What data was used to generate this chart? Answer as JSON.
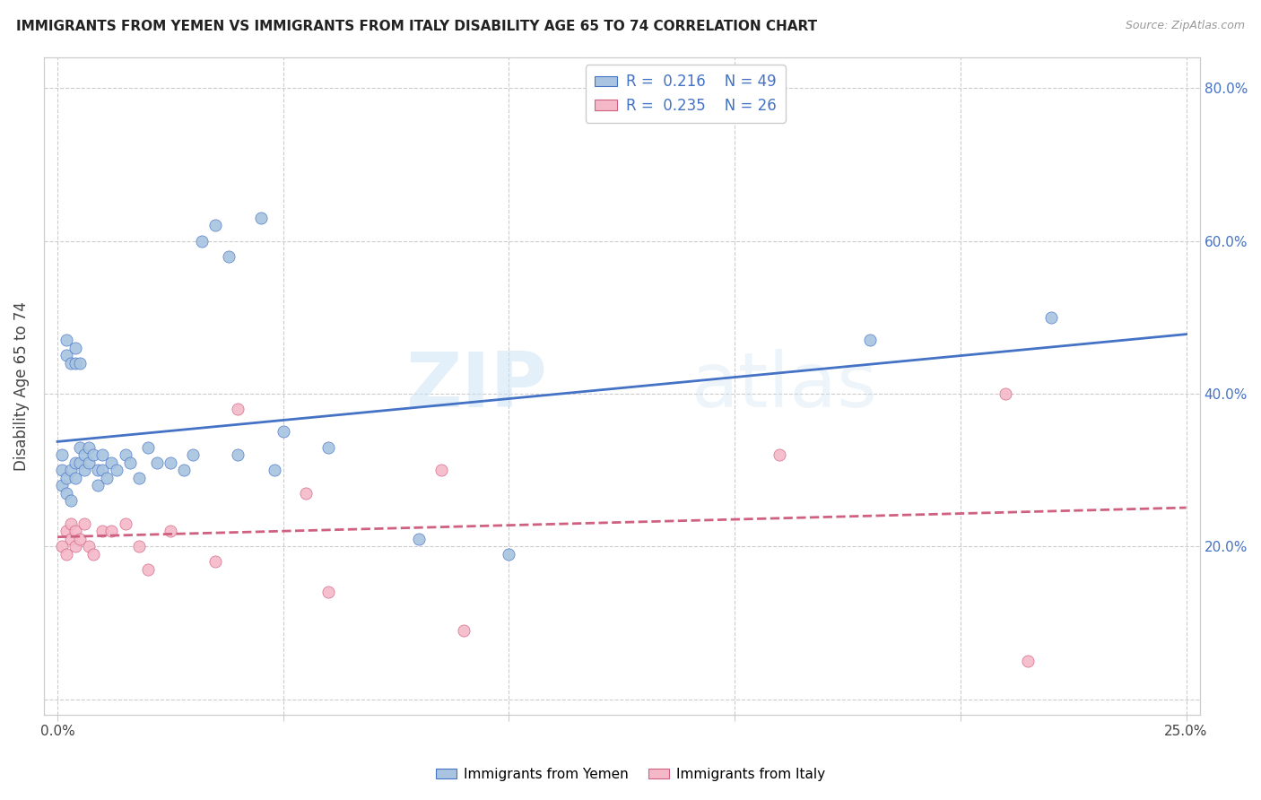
{
  "title": "IMMIGRANTS FROM YEMEN VS IMMIGRANTS FROM ITALY DISABILITY AGE 65 TO 74 CORRELATION CHART",
  "source": "Source: ZipAtlas.com",
  "ylabel": "Disability Age 65 to 74",
  "legend_r1": "0.216",
  "legend_n1": "49",
  "legend_r2": "0.235",
  "legend_n2": "26",
  "legend_label1": "Immigrants from Yemen",
  "legend_label2": "Immigrants from Italy",
  "color_yemen": "#a8c4e0",
  "color_italy": "#f4b8c8",
  "color_trend_yemen": "#4472c4",
  "color_trend_italy": "#d06080",
  "watermark_zip": "ZIP",
  "watermark_atlas": "atlas",
  "yemen_x": [
    0.001,
    0.001,
    0.001,
    0.002,
    0.002,
    0.002,
    0.002,
    0.003,
    0.003,
    0.003,
    0.004,
    0.004,
    0.004,
    0.004,
    0.005,
    0.005,
    0.005,
    0.006,
    0.006,
    0.007,
    0.007,
    0.008,
    0.009,
    0.009,
    0.01,
    0.01,
    0.011,
    0.012,
    0.013,
    0.015,
    0.016,
    0.018,
    0.02,
    0.022,
    0.025,
    0.028,
    0.03,
    0.032,
    0.035,
    0.038,
    0.04,
    0.045,
    0.048,
    0.05,
    0.06,
    0.08,
    0.1,
    0.18,
    0.22
  ],
  "yemen_y": [
    0.3,
    0.32,
    0.28,
    0.45,
    0.47,
    0.29,
    0.27,
    0.44,
    0.3,
    0.26,
    0.44,
    0.46,
    0.29,
    0.31,
    0.31,
    0.44,
    0.33,
    0.3,
    0.32,
    0.33,
    0.31,
    0.32,
    0.3,
    0.28,
    0.32,
    0.3,
    0.29,
    0.31,
    0.3,
    0.32,
    0.31,
    0.29,
    0.33,
    0.31,
    0.31,
    0.3,
    0.32,
    0.6,
    0.62,
    0.58,
    0.32,
    0.63,
    0.3,
    0.35,
    0.33,
    0.21,
    0.19,
    0.47,
    0.5
  ],
  "italy_x": [
    0.001,
    0.002,
    0.002,
    0.003,
    0.003,
    0.004,
    0.004,
    0.005,
    0.006,
    0.007,
    0.008,
    0.01,
    0.012,
    0.015,
    0.018,
    0.02,
    0.025,
    0.035,
    0.04,
    0.055,
    0.06,
    0.085,
    0.09,
    0.16,
    0.21,
    0.215
  ],
  "italy_y": [
    0.2,
    0.22,
    0.19,
    0.21,
    0.23,
    0.2,
    0.22,
    0.21,
    0.23,
    0.2,
    0.19,
    0.22,
    0.22,
    0.23,
    0.2,
    0.17,
    0.22,
    0.18,
    0.38,
    0.27,
    0.14,
    0.3,
    0.09,
    0.32,
    0.4,
    0.05
  ],
  "xlim": [
    0.0,
    0.25
  ],
  "ylim": [
    -0.02,
    0.84
  ],
  "xticks": [
    0.0,
    0.05,
    0.1,
    0.15,
    0.2,
    0.25
  ],
  "yticks": [
    0.0,
    0.2,
    0.4,
    0.6,
    0.8
  ],
  "ytick_labels": [
    "",
    "20.0%",
    "40.0%",
    "60.0%",
    "80.0%"
  ]
}
